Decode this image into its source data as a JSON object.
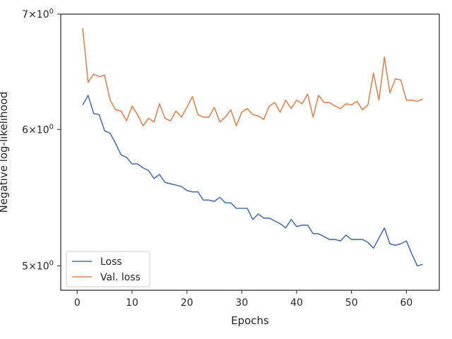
{
  "chart_data": {
    "type": "line",
    "xlabel": "Epochs",
    "ylabel": "Negative log-likelihood",
    "xlim": [
      -3,
      66
    ],
    "ylim": [
      4.84,
      7.0
    ],
    "yscale": "log",
    "x_ticks": [
      0,
      10,
      20,
      30,
      40,
      50,
      60
    ],
    "y_ticks": [
      {
        "value": 5,
        "label_base": "5",
        "label_exp": "0"
      },
      {
        "value": 6,
        "label_base": "6",
        "label_exp": "0"
      },
      {
        "value": 7,
        "label_base": "7",
        "label_exp": "0"
      }
    ],
    "tick_label_times": "×10",
    "grid": false,
    "legend_position": "lower-left",
    "x": [
      1,
      2,
      3,
      4,
      5,
      6,
      7,
      8,
      9,
      10,
      11,
      12,
      13,
      14,
      15,
      16,
      17,
      18,
      19,
      20,
      21,
      22,
      23,
      24,
      25,
      26,
      27,
      28,
      29,
      30,
      31,
      32,
      33,
      34,
      35,
      36,
      37,
      38,
      39,
      40,
      41,
      42,
      43,
      44,
      45,
      46,
      47,
      48,
      49,
      50,
      51,
      52,
      53,
      54,
      55,
      56,
      57,
      58,
      59,
      60,
      61,
      62,
      63
    ],
    "series": [
      {
        "name": "Loss",
        "color": "#4c72b0",
        "values": [
          6.2,
          6.28,
          6.13,
          6.12,
          5.99,
          5.97,
          5.89,
          5.8,
          5.78,
          5.73,
          5.73,
          5.7,
          5.68,
          5.62,
          5.65,
          5.59,
          5.58,
          5.57,
          5.56,
          5.53,
          5.52,
          5.52,
          5.46,
          5.46,
          5.45,
          5.48,
          5.44,
          5.44,
          5.4,
          5.4,
          5.4,
          5.32,
          5.36,
          5.33,
          5.33,
          5.31,
          5.29,
          5.26,
          5.32,
          5.27,
          5.28,
          5.28,
          5.22,
          5.22,
          5.2,
          5.18,
          5.18,
          5.17,
          5.21,
          5.18,
          5.18,
          5.18,
          5.16,
          5.12,
          5.19,
          5.26,
          5.15,
          5.14,
          5.15,
          5.17,
          5.08,
          5.0,
          5.01
        ]
      },
      {
        "name": "Val. loss",
        "color": "#dd8452",
        "values": [
          6.87,
          6.39,
          6.46,
          6.44,
          6.45,
          6.24,
          6.16,
          6.15,
          6.07,
          6.19,
          6.12,
          6.03,
          6.09,
          6.06,
          6.21,
          6.09,
          6.07,
          6.15,
          6.1,
          6.18,
          6.27,
          6.12,
          6.1,
          6.1,
          6.18,
          6.06,
          6.1,
          6.16,
          6.03,
          6.14,
          6.17,
          6.12,
          6.11,
          6.08,
          6.19,
          6.22,
          6.14,
          6.24,
          6.17,
          6.24,
          6.21,
          6.29,
          6.1,
          6.28,
          6.22,
          6.22,
          6.19,
          6.17,
          6.21,
          6.2,
          6.23,
          6.16,
          6.2,
          6.47,
          6.24,
          6.61,
          6.3,
          6.42,
          6.41,
          6.24,
          6.24,
          6.23,
          6.25
        ]
      }
    ]
  }
}
